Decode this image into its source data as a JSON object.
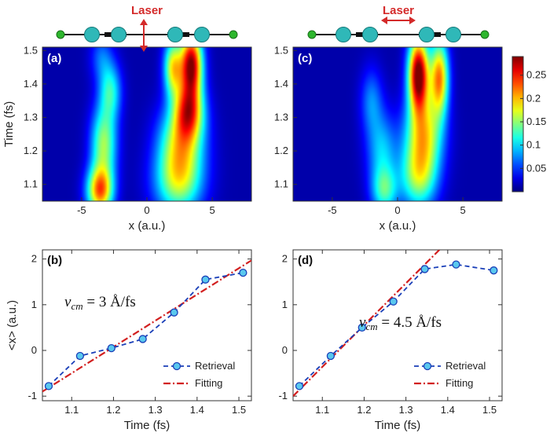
{
  "colors": {
    "retrieval_line": "#1a3fb8",
    "retrieval_marker": "#5ac8ee",
    "fitting_line": "#d21f1f",
    "laser": "#d42a2a",
    "atom_carbon": "#2fb8b8",
    "atom_hydrogen": "#2db62d"
  },
  "colorbar": {
    "ticks": [
      "0.05",
      "0.1",
      "0.15",
      "0.2",
      "0.25"
    ],
    "values": [
      0.05,
      0.1,
      0.15,
      0.2,
      0.25
    ],
    "range": [
      0,
      0.29
    ],
    "colormap": "jet"
  },
  "chart_data": [
    {
      "type": "heatmap",
      "panel_label": "(a)",
      "laser_label": "Laser",
      "laser_arrow": "vertical",
      "xlabel": "x (a.u.)",
      "ylabel": "Time (fs)",
      "xlim": [
        -8,
        8
      ],
      "ylim": [
        1.05,
        1.51
      ],
      "x_ticks": [
        -5,
        0,
        5
      ],
      "x_tick_labels": [
        "-5",
        "0",
        "5"
      ],
      "y_ticks": [
        1.1,
        1.2,
        1.3,
        1.4,
        1.5
      ],
      "y_tick_labels": [
        "1.1",
        "1.2",
        "1.3",
        "1.4",
        "1.5"
      ],
      "features": [
        {
          "x": -3.6,
          "y": 1.08,
          "amp": 0.2,
          "sx": 0.7,
          "sy": 0.05
        },
        {
          "x": -3.3,
          "y": 1.22,
          "amp": 0.14,
          "sx": 0.7,
          "sy": 0.08
        },
        {
          "x": -2.8,
          "y": 1.38,
          "amp": 0.1,
          "sx": 0.6,
          "sy": 0.06
        },
        {
          "x": -3.5,
          "y": 1.48,
          "amp": 0.05,
          "sx": 0.6,
          "sy": 0.05
        },
        {
          "x": 2.4,
          "y": 1.1,
          "amp": 0.12,
          "sx": 1.3,
          "sy": 0.07
        },
        {
          "x": 2.6,
          "y": 1.22,
          "amp": 0.15,
          "sx": 1.2,
          "sy": 0.08
        },
        {
          "x": 3.2,
          "y": 1.32,
          "amp": 0.18,
          "sx": 0.8,
          "sy": 0.06
        },
        {
          "x": 3.4,
          "y": 1.46,
          "amp": 0.27,
          "sx": 0.6,
          "sy": 0.07
        },
        {
          "x": 2.0,
          "y": 1.45,
          "amp": 0.16,
          "sx": 0.5,
          "sy": 0.06
        }
      ]
    },
    {
      "type": "heatmap",
      "panel_label": "(c)",
      "laser_label": "Laser",
      "laser_arrow": "horizontal",
      "xlabel": "x (a.u.)",
      "ylabel": "",
      "xlim": [
        -8,
        8
      ],
      "ylim": [
        1.05,
        1.51
      ],
      "x_ticks": [
        -5,
        0,
        5
      ],
      "x_tick_labels": [
        "-5",
        "0",
        "5"
      ],
      "y_ticks": [
        1.1,
        1.2,
        1.3,
        1.4,
        1.5
      ],
      "y_tick_labels": [
        "1.1",
        "1.2",
        "1.3",
        "1.4",
        "1.5"
      ],
      "features": [
        {
          "x": -1.0,
          "y": 1.08,
          "amp": 0.1,
          "sx": 0.7,
          "sy": 0.05
        },
        {
          "x": -1.2,
          "y": 1.2,
          "amp": 0.08,
          "sx": 0.8,
          "sy": 0.08
        },
        {
          "x": -2.0,
          "y": 1.35,
          "amp": 0.06,
          "sx": 0.6,
          "sy": 0.07
        },
        {
          "x": 1.6,
          "y": 1.12,
          "amp": 0.13,
          "sx": 1.0,
          "sy": 0.07
        },
        {
          "x": 2.0,
          "y": 1.25,
          "amp": 0.16,
          "sx": 1.0,
          "sy": 0.08
        },
        {
          "x": 1.6,
          "y": 1.43,
          "amp": 0.29,
          "sx": 0.55,
          "sy": 0.08
        },
        {
          "x": 3.2,
          "y": 1.42,
          "amp": 0.2,
          "sx": 0.5,
          "sy": 0.08
        }
      ]
    },
    {
      "type": "line",
      "panel_label": "(b)",
      "xlabel": "Time (fs)",
      "ylabel": "<x> (a.u.)",
      "xlim": [
        1.03,
        1.53
      ],
      "ylim": [
        -1.1,
        2.2
      ],
      "x_ticks": [
        1.1,
        1.2,
        1.3,
        1.4,
        1.5
      ],
      "x_tick_labels": [
        "1.1",
        "1.2",
        "1.3",
        "1.4",
        "1.5"
      ],
      "y_ticks": [
        -1,
        0,
        1,
        2
      ],
      "y_tick_labels": [
        "-1",
        "0",
        "1",
        "2"
      ],
      "annotation": {
        "symbol": "v",
        "subscript": "cm",
        "text": " = 3 Å/fs"
      },
      "legend_position": "bottom-right",
      "series": [
        {
          "name": "Retrieval",
          "style": "dashed-markers",
          "x": [
            1.045,
            1.12,
            1.195,
            1.27,
            1.345,
            1.42,
            1.51
          ],
          "y": [
            -0.78,
            -0.12,
            0.05,
            0.25,
            0.83,
            1.55,
            1.7
          ]
        },
        {
          "name": "Fitting",
          "style": "dash-dot",
          "x": [
            1.03,
            1.53
          ],
          "y": [
            -0.9,
            1.97
          ]
        }
      ]
    },
    {
      "type": "line",
      "panel_label": "(d)",
      "xlabel": "Time (fs)",
      "ylabel": "",
      "xlim": [
        1.03,
        1.53
      ],
      "ylim": [
        -1.1,
        2.2
      ],
      "x_ticks": [
        1.1,
        1.2,
        1.3,
        1.4,
        1.5
      ],
      "x_tick_labels": [
        "1.1",
        "1.2",
        "1.3",
        "1.4",
        "1.5"
      ],
      "y_ticks": [
        -1,
        0,
        1,
        2
      ],
      "y_tick_labels": [
        "-1",
        "0",
        "1",
        "2"
      ],
      "annotation": {
        "symbol": "v",
        "subscript": "cm",
        "text": " = 4.5 Å/fs"
      },
      "legend_position": "bottom-right",
      "series": [
        {
          "name": "Retrieval",
          "style": "dashed-markers",
          "x": [
            1.045,
            1.12,
            1.195,
            1.27,
            1.345,
            1.42,
            1.51
          ],
          "y": [
            -0.78,
            -0.12,
            0.5,
            1.07,
            1.78,
            1.88,
            1.75
          ]
        },
        {
          "name": "Fitting",
          "style": "dash-dot",
          "x": [
            1.03,
            1.38
          ],
          "y": [
            -1.0,
            2.2
          ]
        }
      ]
    }
  ]
}
